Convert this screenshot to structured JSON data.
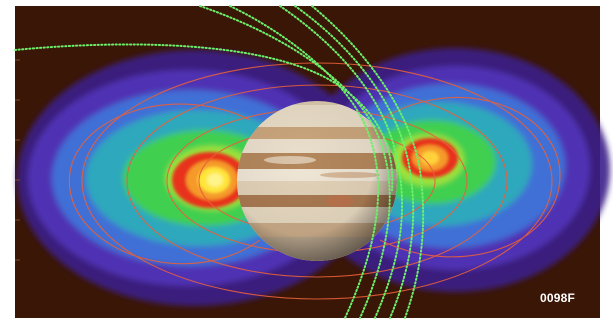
{
  "image": {
    "label": "0098F",
    "colors": {
      "background": "#3a1606",
      "outer_glow": "#3b1f8a",
      "band_purple": "#5a3fc0",
      "band_blue": "#3f78d8",
      "band_cyan": "#2fb0b8",
      "band_green": "#3fd04a",
      "band_yellow": "#f2e23a",
      "band_orange": "#f08a2a",
      "band_red": "#e8321c",
      "field_lines": "#e8603a",
      "trajectories": "#6cf06c"
    }
  }
}
